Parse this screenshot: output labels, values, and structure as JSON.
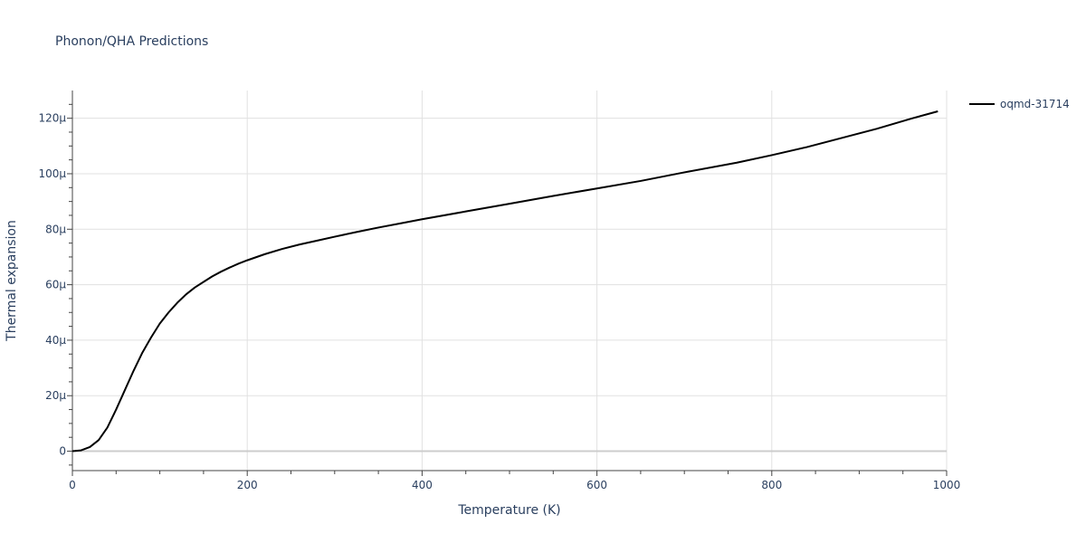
{
  "chart_data": {
    "type": "line",
    "title": "Phonon/QHA Predictions",
    "xlabel": "Temperature (K)",
    "ylabel": "Thermal expansion",
    "xlim": [
      0,
      1000
    ],
    "ylim": [
      -7,
      130
    ],
    "x_ticks": [
      0,
      200,
      400,
      600,
      800,
      1000
    ],
    "x_tick_labels": [
      "0",
      "200",
      "400",
      "600",
      "800",
      "1000"
    ],
    "y_ticks": [
      0,
      20,
      40,
      60,
      80,
      100,
      120
    ],
    "y_tick_labels": [
      "0",
      "20μ",
      "40μ",
      "60μ",
      "80μ",
      "100μ",
      "120μ"
    ],
    "grid": true,
    "legend_position": "top-right",
    "series": [
      {
        "name": "oqmd-31714",
        "color": "#000000",
        "x": [
          0,
          10,
          20,
          30,
          40,
          50,
          60,
          70,
          80,
          90,
          100,
          110,
          120,
          130,
          140,
          150,
          160,
          170,
          180,
          190,
          200,
          220,
          240,
          260,
          280,
          300,
          325,
          350,
          375,
          400,
          450,
          500,
          550,
          600,
          650,
          700,
          760,
          800,
          840,
          880,
          920,
          960,
          990
        ],
        "y": [
          0,
          0.3,
          1.5,
          4,
          8.5,
          15,
          22,
          29,
          35.5,
          41,
          46,
          50,
          53.5,
          56.5,
          59,
          61,
          63,
          64.7,
          66.2,
          67.6,
          68.8,
          71.0,
          72.9,
          74.5,
          75.9,
          77.3,
          79.0,
          80.6,
          82.1,
          83.6,
          86.4,
          89.2,
          92.0,
          94.7,
          97.4,
          100.5,
          104.0,
          106.7,
          109.6,
          112.9,
          116.2,
          119.9,
          122.5
        ]
      }
    ]
  }
}
